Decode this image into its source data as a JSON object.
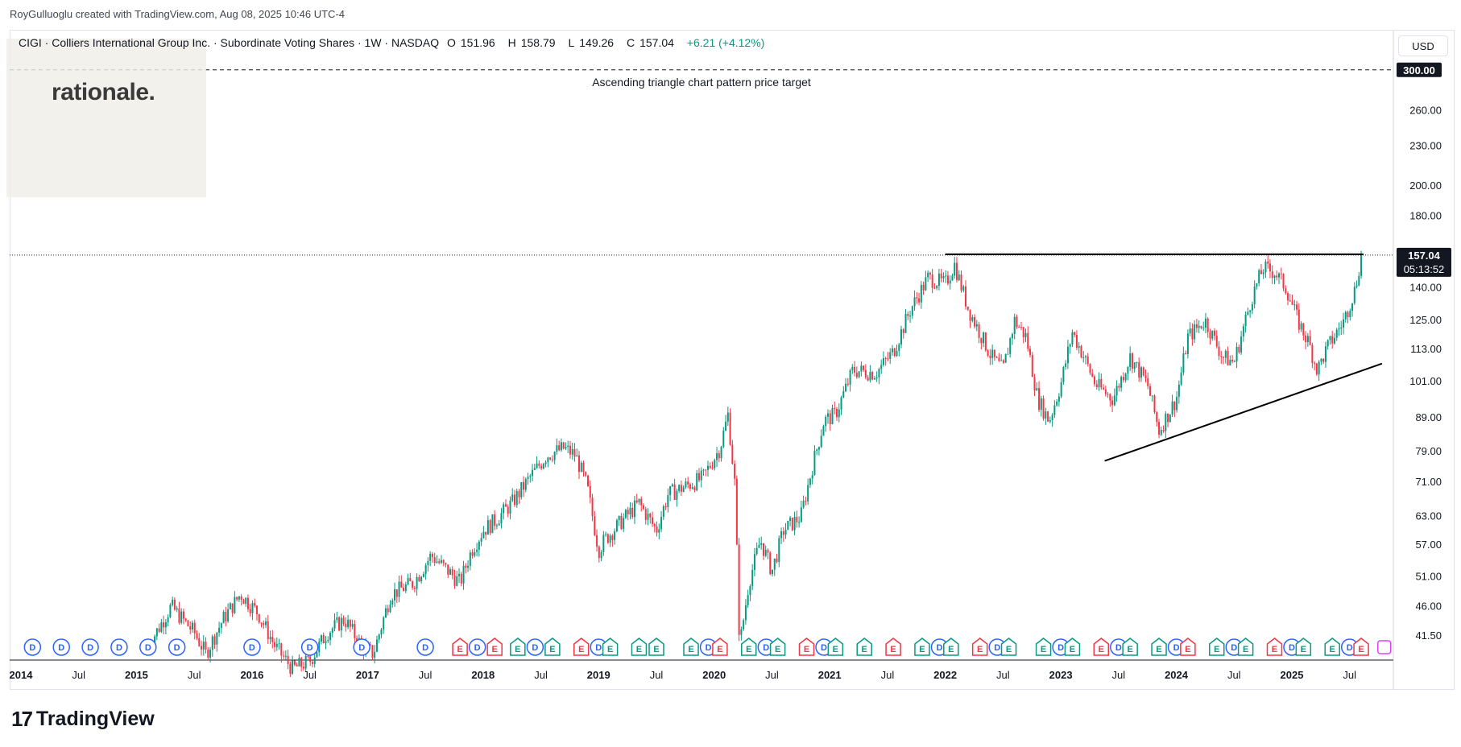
{
  "credit": "RoyGulluoglu created with TradingView.com, Aug 08, 2025 10:46 UTC-4",
  "header": {
    "title": "CIGI · Colliers International Group Inc. · Subordinate Voting Shares · 1W · NASDAQ",
    "open_label": "O",
    "open": "151.96",
    "high_label": "H",
    "high": "158.79",
    "low_label": "L",
    "low": "149.26",
    "close_label": "C",
    "close": "157.04",
    "change": "+6.21 (+4.12%)"
  },
  "watermark": "rationale.",
  "currency_button": "USD",
  "branding": "TradingView",
  "annotation": "Ascending triangle chart pattern price target",
  "price_badges": {
    "target": "300.00",
    "last": "157.04",
    "countdown": "05:13:52"
  },
  "colors": {
    "up": "#089981",
    "down": "#f23645",
    "trendline": "#000000",
    "dividend": "#2962ff",
    "earnings_beat": "#089981",
    "earnings_miss": "#f23645",
    "split": "#e040fb"
  },
  "chart_data": {
    "type": "candlestick",
    "symbol": "CIGI",
    "interval": "1W",
    "exchange": "NASDAQ",
    "scale": "log",
    "y_ticks": [
      41.5,
      46.0,
      51.0,
      57.0,
      63.0,
      71.0,
      79.0,
      89.0,
      101.0,
      113.0,
      125.0,
      140.0,
      180.0,
      200.0,
      230.0,
      260.0
    ],
    "y_tick_labels": [
      "41.50",
      "46.00",
      "51.00",
      "57.00",
      "63.00",
      "71.00",
      "79.00",
      "89.00",
      "101.00",
      "113.00",
      "125.00",
      "140.00",
      "180.00",
      "200.00",
      "230.00",
      "260.00"
    ],
    "x_ticks": [
      {
        "label": "2014",
        "t": 2014.0,
        "major": true
      },
      {
        "label": "Jul",
        "t": 2014.5,
        "major": false
      },
      {
        "label": "2015",
        "t": 2015.0,
        "major": true
      },
      {
        "label": "Jul",
        "t": 2015.5,
        "major": false
      },
      {
        "label": "2016",
        "t": 2016.0,
        "major": true
      },
      {
        "label": "Jul",
        "t": 2016.5,
        "major": false
      },
      {
        "label": "2017",
        "t": 2017.0,
        "major": true
      },
      {
        "label": "Jul",
        "t": 2017.5,
        "major": false
      },
      {
        "label": "2018",
        "t": 2018.0,
        "major": true
      },
      {
        "label": "Jul",
        "t": 2018.5,
        "major": false
      },
      {
        "label": "2019",
        "t": 2019.0,
        "major": true
      },
      {
        "label": "Jul",
        "t": 2019.5,
        "major": false
      },
      {
        "label": "2020",
        "t": 2020.0,
        "major": true
      },
      {
        "label": "Jul",
        "t": 2020.5,
        "major": false
      },
      {
        "label": "2021",
        "t": 2021.0,
        "major": true
      },
      {
        "label": "Jul",
        "t": 2021.5,
        "major": false
      },
      {
        "label": "2022",
        "t": 2022.0,
        "major": true
      },
      {
        "label": "Jul",
        "t": 2022.5,
        "major": false
      },
      {
        "label": "2023",
        "t": 2023.0,
        "major": true
      },
      {
        "label": "Jul",
        "t": 2023.5,
        "major": false
      },
      {
        "label": "2024",
        "t": 2024.0,
        "major": true
      },
      {
        "label": "Jul",
        "t": 2024.5,
        "major": false
      },
      {
        "label": "2025",
        "t": 2025.0,
        "major": true
      },
      {
        "label": "Jul",
        "t": 2025.5,
        "major": false
      }
    ],
    "price_path": [
      [
        2015.1,
        40
      ],
      [
        2015.3,
        46
      ],
      [
        2015.5,
        42
      ],
      [
        2015.6,
        39
      ],
      [
        2015.75,
        44
      ],
      [
        2015.9,
        48
      ],
      [
        2016.05,
        45
      ],
      [
        2016.2,
        40
      ],
      [
        2016.35,
        37
      ],
      [
        2016.5,
        38
      ],
      [
        2016.65,
        42
      ],
      [
        2016.8,
        44
      ],
      [
        2016.95,
        40
      ],
      [
        2017.05,
        39
      ],
      [
        2017.2,
        48
      ],
      [
        2017.4,
        50
      ],
      [
        2017.55,
        55
      ],
      [
        2017.7,
        52
      ],
      [
        2017.8,
        50
      ],
      [
        2017.9,
        56
      ],
      [
        2018.0,
        60
      ],
      [
        2018.1,
        62
      ],
      [
        2018.25,
        66
      ],
      [
        2018.4,
        72
      ],
      [
        2018.55,
        78
      ],
      [
        2018.7,
        80
      ],
      [
        2018.8,
        78
      ],
      [
        2018.9,
        70
      ],
      [
        2019.0,
        56
      ],
      [
        2019.05,
        58
      ],
      [
        2019.2,
        62
      ],
      [
        2019.35,
        66
      ],
      [
        2019.5,
        60
      ],
      [
        2019.6,
        68
      ],
      [
        2019.75,
        70
      ],
      [
        2019.9,
        72
      ],
      [
        2020.05,
        80
      ],
      [
        2020.12,
        90
      ],
      [
        2020.18,
        70
      ],
      [
        2020.22,
        40
      ],
      [
        2020.3,
        50
      ],
      [
        2020.4,
        58
      ],
      [
        2020.5,
        52
      ],
      [
        2020.6,
        60
      ],
      [
        2020.75,
        63
      ],
      [
        2020.85,
        75
      ],
      [
        2020.95,
        88
      ],
      [
        2021.05,
        90
      ],
      [
        2021.2,
        105
      ],
      [
        2021.4,
        104
      ],
      [
        2021.55,
        112
      ],
      [
        2021.7,
        130
      ],
      [
        2021.85,
        145
      ],
      [
        2022.0,
        142
      ],
      [
        2022.08,
        152
      ],
      [
        2022.2,
        130
      ],
      [
        2022.4,
        110
      ],
      [
        2022.5,
        105
      ],
      [
        2022.6,
        125
      ],
      [
        2022.7,
        118
      ],
      [
        2022.8,
        95
      ],
      [
        2022.9,
        88
      ],
      [
        2023.0,
        100
      ],
      [
        2023.1,
        120
      ],
      [
        2023.2,
        110
      ],
      [
        2023.3,
        100
      ],
      [
        2023.45,
        95
      ],
      [
        2023.6,
        110
      ],
      [
        2023.75,
        100
      ],
      [
        2023.85,
        85
      ],
      [
        2024.0,
        95
      ],
      [
        2024.1,
        118
      ],
      [
        2024.25,
        125
      ],
      [
        2024.4,
        110
      ],
      [
        2024.5,
        108
      ],
      [
        2024.65,
        135
      ],
      [
        2024.75,
        150
      ],
      [
        2024.85,
        148
      ],
      [
        2024.95,
        140
      ],
      [
        2025.05,
        125
      ],
      [
        2025.15,
        115
      ],
      [
        2025.22,
        105
      ],
      [
        2025.3,
        113
      ],
      [
        2025.45,
        125
      ],
      [
        2025.55,
        140
      ],
      [
        2025.6,
        157
      ]
    ],
    "levels": [
      {
        "price": 300.0,
        "style": "dashed"
      },
      {
        "price": 157.04,
        "style": "dotted"
      }
    ],
    "resistance_line": {
      "x": [
        2022.0,
        2025.62
      ],
      "y": [
        157.5,
        157.5
      ]
    },
    "support_line": {
      "x": [
        2023.38,
        2025.78
      ],
      "y": [
        76.5,
        107.5
      ]
    },
    "events": [
      {
        "type": "D",
        "t": 2014.1
      },
      {
        "type": "D",
        "t": 2014.35
      },
      {
        "type": "D",
        "t": 2014.6
      },
      {
        "type": "D",
        "t": 2014.85
      },
      {
        "type": "D",
        "t": 2015.1
      },
      {
        "type": "D",
        "t": 2015.35
      },
      {
        "type": "D",
        "t": 2016.0
      },
      {
        "type": "D",
        "t": 2016.5
      },
      {
        "type": "D",
        "t": 2016.95
      },
      {
        "type": "D",
        "t": 2017.5
      },
      {
        "type": "E",
        "t": 2017.8
      },
      {
        "type": "D",
        "t": 2017.95
      },
      {
        "type": "E",
        "t": 2018.1
      },
      {
        "type": "E",
        "t": 2018.3
      },
      {
        "type": "D",
        "t": 2018.45
      },
      {
        "type": "E",
        "t": 2018.6
      },
      {
        "type": "E",
        "t": 2018.85
      },
      {
        "type": "D",
        "t": 2019.0
      },
      {
        "type": "E",
        "t": 2019.1
      },
      {
        "type": "E",
        "t": 2019.35
      },
      {
        "type": "E",
        "t": 2019.5
      },
      {
        "type": "E",
        "t": 2019.8
      },
      {
        "type": "D",
        "t": 2019.95
      },
      {
        "type": "E",
        "t": 2020.05
      },
      {
        "type": "E",
        "t": 2020.3
      },
      {
        "type": "D",
        "t": 2020.45
      },
      {
        "type": "E",
        "t": 2020.55
      },
      {
        "type": "E",
        "t": 2020.8
      },
      {
        "type": "D",
        "t": 2020.95
      },
      {
        "type": "E",
        "t": 2021.05
      },
      {
        "type": "E",
        "t": 2021.3
      },
      {
        "type": "E",
        "t": 2021.55
      },
      {
        "type": "E",
        "t": 2021.8
      },
      {
        "type": "D",
        "t": 2021.95
      },
      {
        "type": "E",
        "t": 2022.05
      },
      {
        "type": "E",
        "t": 2022.3
      },
      {
        "type": "D",
        "t": 2022.45
      },
      {
        "type": "E",
        "t": 2022.55
      },
      {
        "type": "E",
        "t": 2022.85
      },
      {
        "type": "D",
        "t": 2023.0
      },
      {
        "type": "E",
        "t": 2023.1
      },
      {
        "type": "E",
        "t": 2023.35
      },
      {
        "type": "D",
        "t": 2023.5
      },
      {
        "type": "E",
        "t": 2023.6
      },
      {
        "type": "E",
        "t": 2023.85
      },
      {
        "type": "D",
        "t": 2024.0
      },
      {
        "type": "E",
        "t": 2024.1
      },
      {
        "type": "E",
        "t": 2024.35
      },
      {
        "type": "D",
        "t": 2024.5
      },
      {
        "type": "E",
        "t": 2024.6
      },
      {
        "type": "E",
        "t": 2024.85
      },
      {
        "type": "D",
        "t": 2025.0
      },
      {
        "type": "E",
        "t": 2025.1
      },
      {
        "type": "E",
        "t": 2025.35
      },
      {
        "type": "D",
        "t": 2025.5
      },
      {
        "type": "E",
        "t": 2025.6
      },
      {
        "type": "S",
        "t": 2025.8
      }
    ]
  }
}
